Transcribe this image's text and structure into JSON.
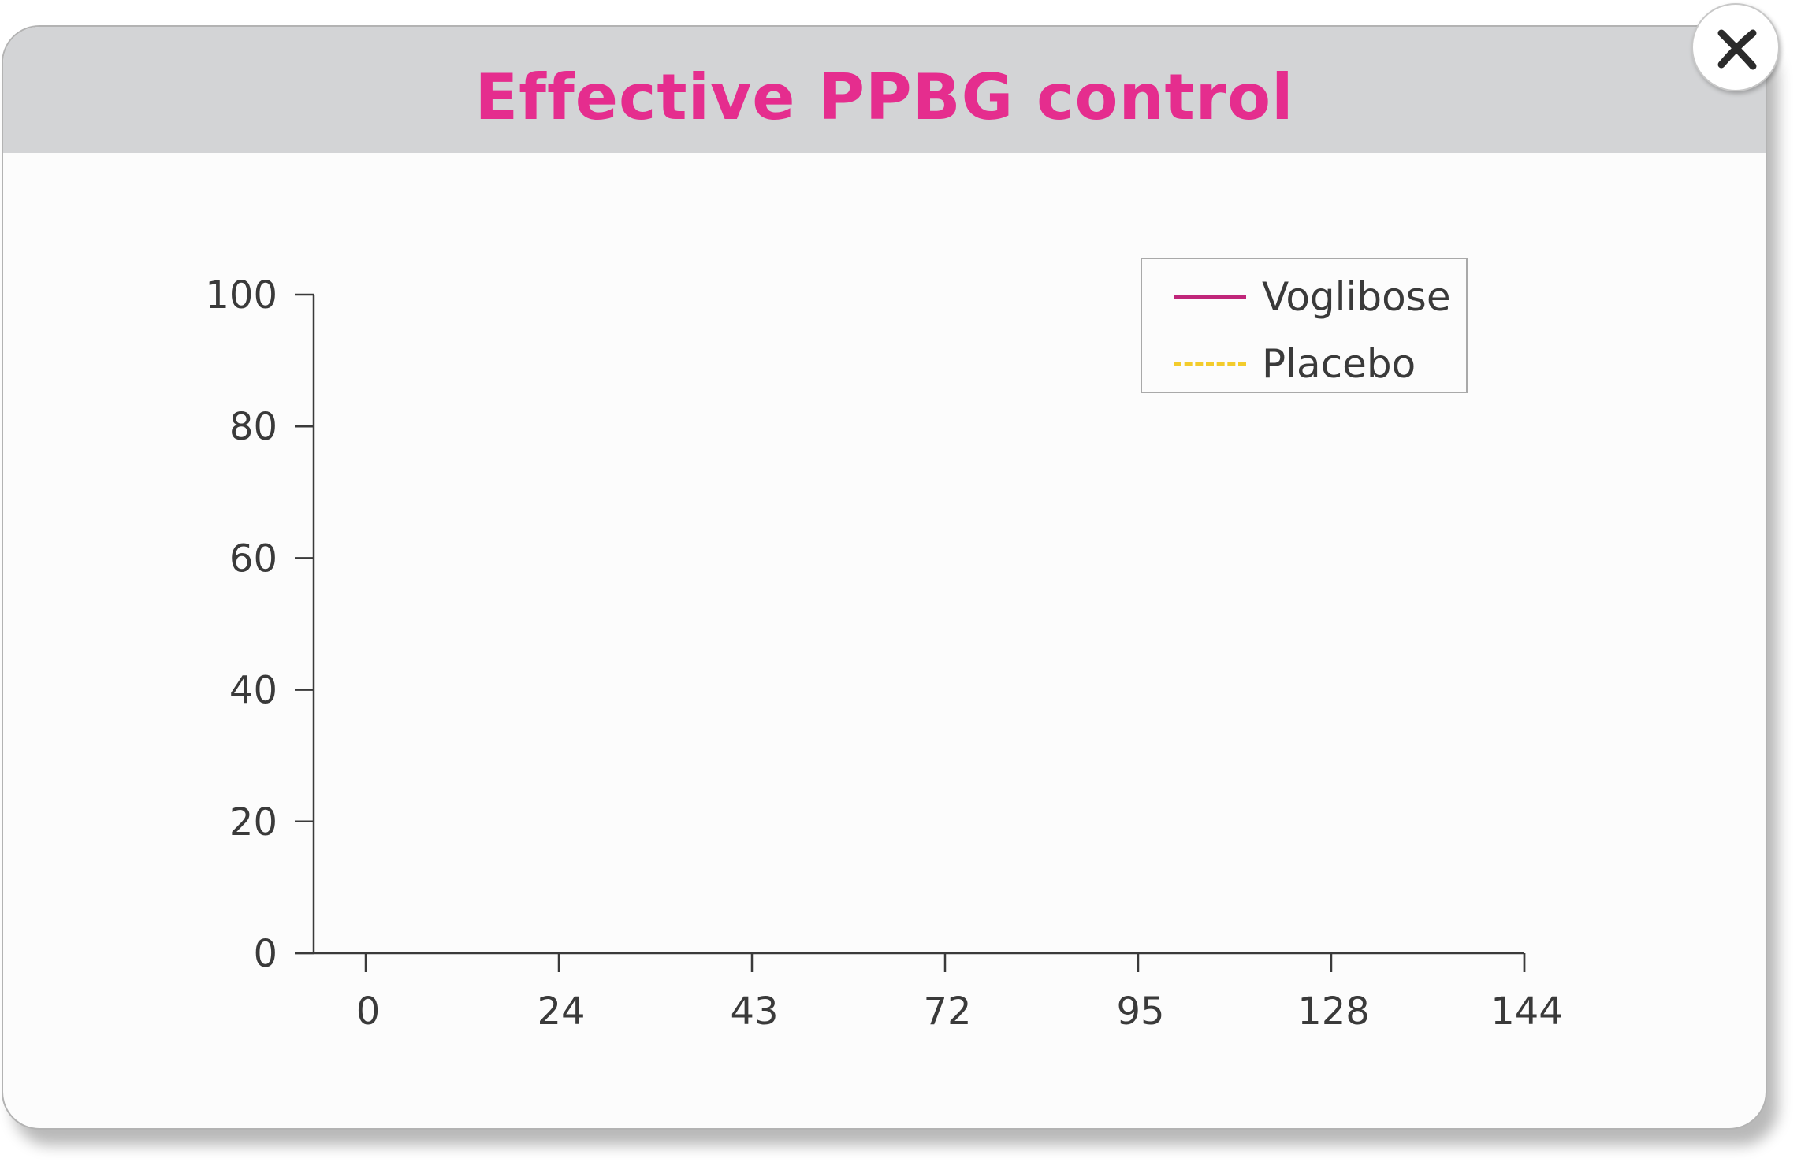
{
  "dialog": {
    "title": "Effective PPBG control",
    "close_icon": "close-icon"
  },
  "colors": {
    "title": "#e52d8e",
    "header_bg": "#d3d4d6",
    "voglibose": "#c0267a",
    "placebo": "#f3cc2c",
    "axis": "#3a3a3a"
  },
  "chart_data": {
    "type": "line",
    "title": "",
    "xlabel": "",
    "ylabel": "",
    "x_ticks": [
      "0",
      "24",
      "43",
      "72",
      "95",
      "128",
      "144"
    ],
    "y_ticks": [
      "0",
      "20",
      "40",
      "60",
      "80",
      "100"
    ],
    "ylim": [
      0,
      100
    ],
    "grid": false,
    "legend_position": "top-right",
    "series": [
      {
        "name": "Voglibose",
        "style": "solid",
        "color": "#c0267a",
        "values": []
      },
      {
        "name": "Placebo",
        "style": "dashed",
        "color": "#f3cc2c",
        "values": []
      }
    ]
  }
}
